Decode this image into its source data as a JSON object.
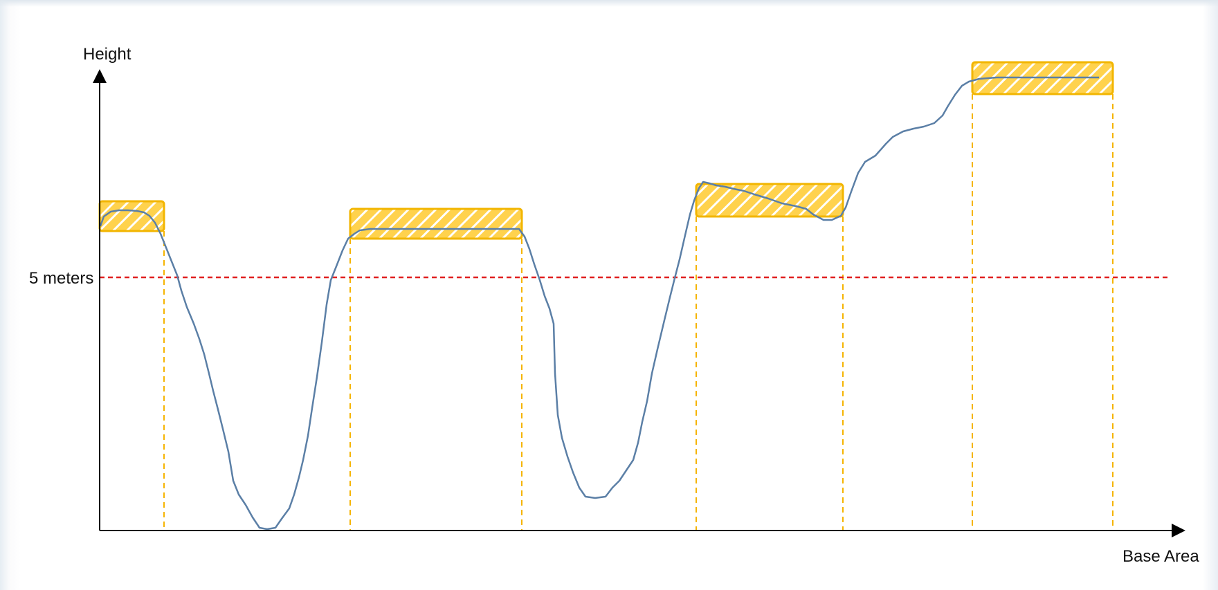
{
  "labels": {
    "y_axis": "Height",
    "x_axis": "Base Area",
    "threshold": "5 meters"
  },
  "colors": {
    "terrain_line": "#5b7fa6",
    "threshold_line": "#e02020",
    "highlight_fill": "#ffd24d",
    "highlight_hatch": "#f2a900",
    "guide_line": "#f5b400",
    "axis": "#000000"
  }
}
